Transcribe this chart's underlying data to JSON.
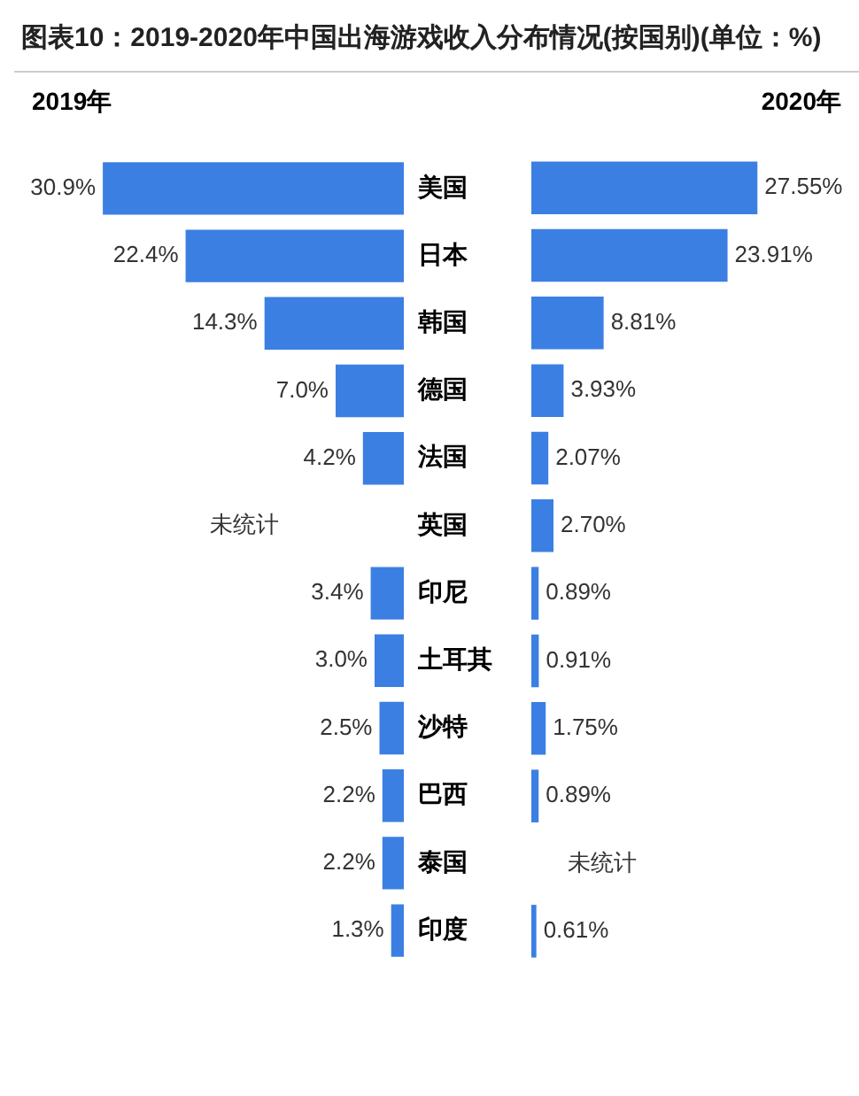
{
  "chart_data": [
    {
      "type": "bar",
      "orientation": "horizontal",
      "title": "图表10：2019-2020年中国出海游戏收入分布情况(按国别)(单位：%)",
      "subtitle": "2019年",
      "categories": [
        "美国",
        "日本",
        "韩国",
        "德国",
        "法国",
        "英国",
        "印尼",
        "土耳其",
        "沙特",
        "巴西",
        "泰国",
        "印度"
      ],
      "values": [
        30.9,
        22.4,
        14.3,
        7.0,
        4.2,
        null,
        3.4,
        3.0,
        2.5,
        2.2,
        2.2,
        1.3
      ],
      "value_labels": [
        "30.9%",
        "22.4%",
        "14.3%",
        "7.0%",
        "4.2%",
        "未统计",
        "3.4%",
        "3.0%",
        "2.5%",
        "2.2%",
        "2.2%",
        "1.3%"
      ],
      "color": "#3b7fe3",
      "tick_labels": "y",
      "legend": false,
      "grid": false
    },
    {
      "type": "bar",
      "orientation": "horizontal",
      "title": "2020年",
      "categories": [
        null,
        null,
        null,
        null,
        null,
        null,
        null,
        null,
        null,
        null,
        null,
        null
      ],
      "values": [
        27.55,
        23.91,
        8.81,
        3.93,
        2.07,
        2.7,
        0.89,
        0.91,
        1.75,
        0.89,
        null,
        0.61
      ],
      "value_labels": [
        "27.55%",
        "23.91%",
        "8.81%",
        "3.93%",
        "2.07%",
        "2.70%",
        "0.89%",
        "0.91%",
        "1.75%",
        "0.89%",
        "未统计",
        "0.61%"
      ],
      "color": "#3b7fe3",
      "tick_labels": false,
      "legend": false,
      "grid": false
    }
  ]
}
